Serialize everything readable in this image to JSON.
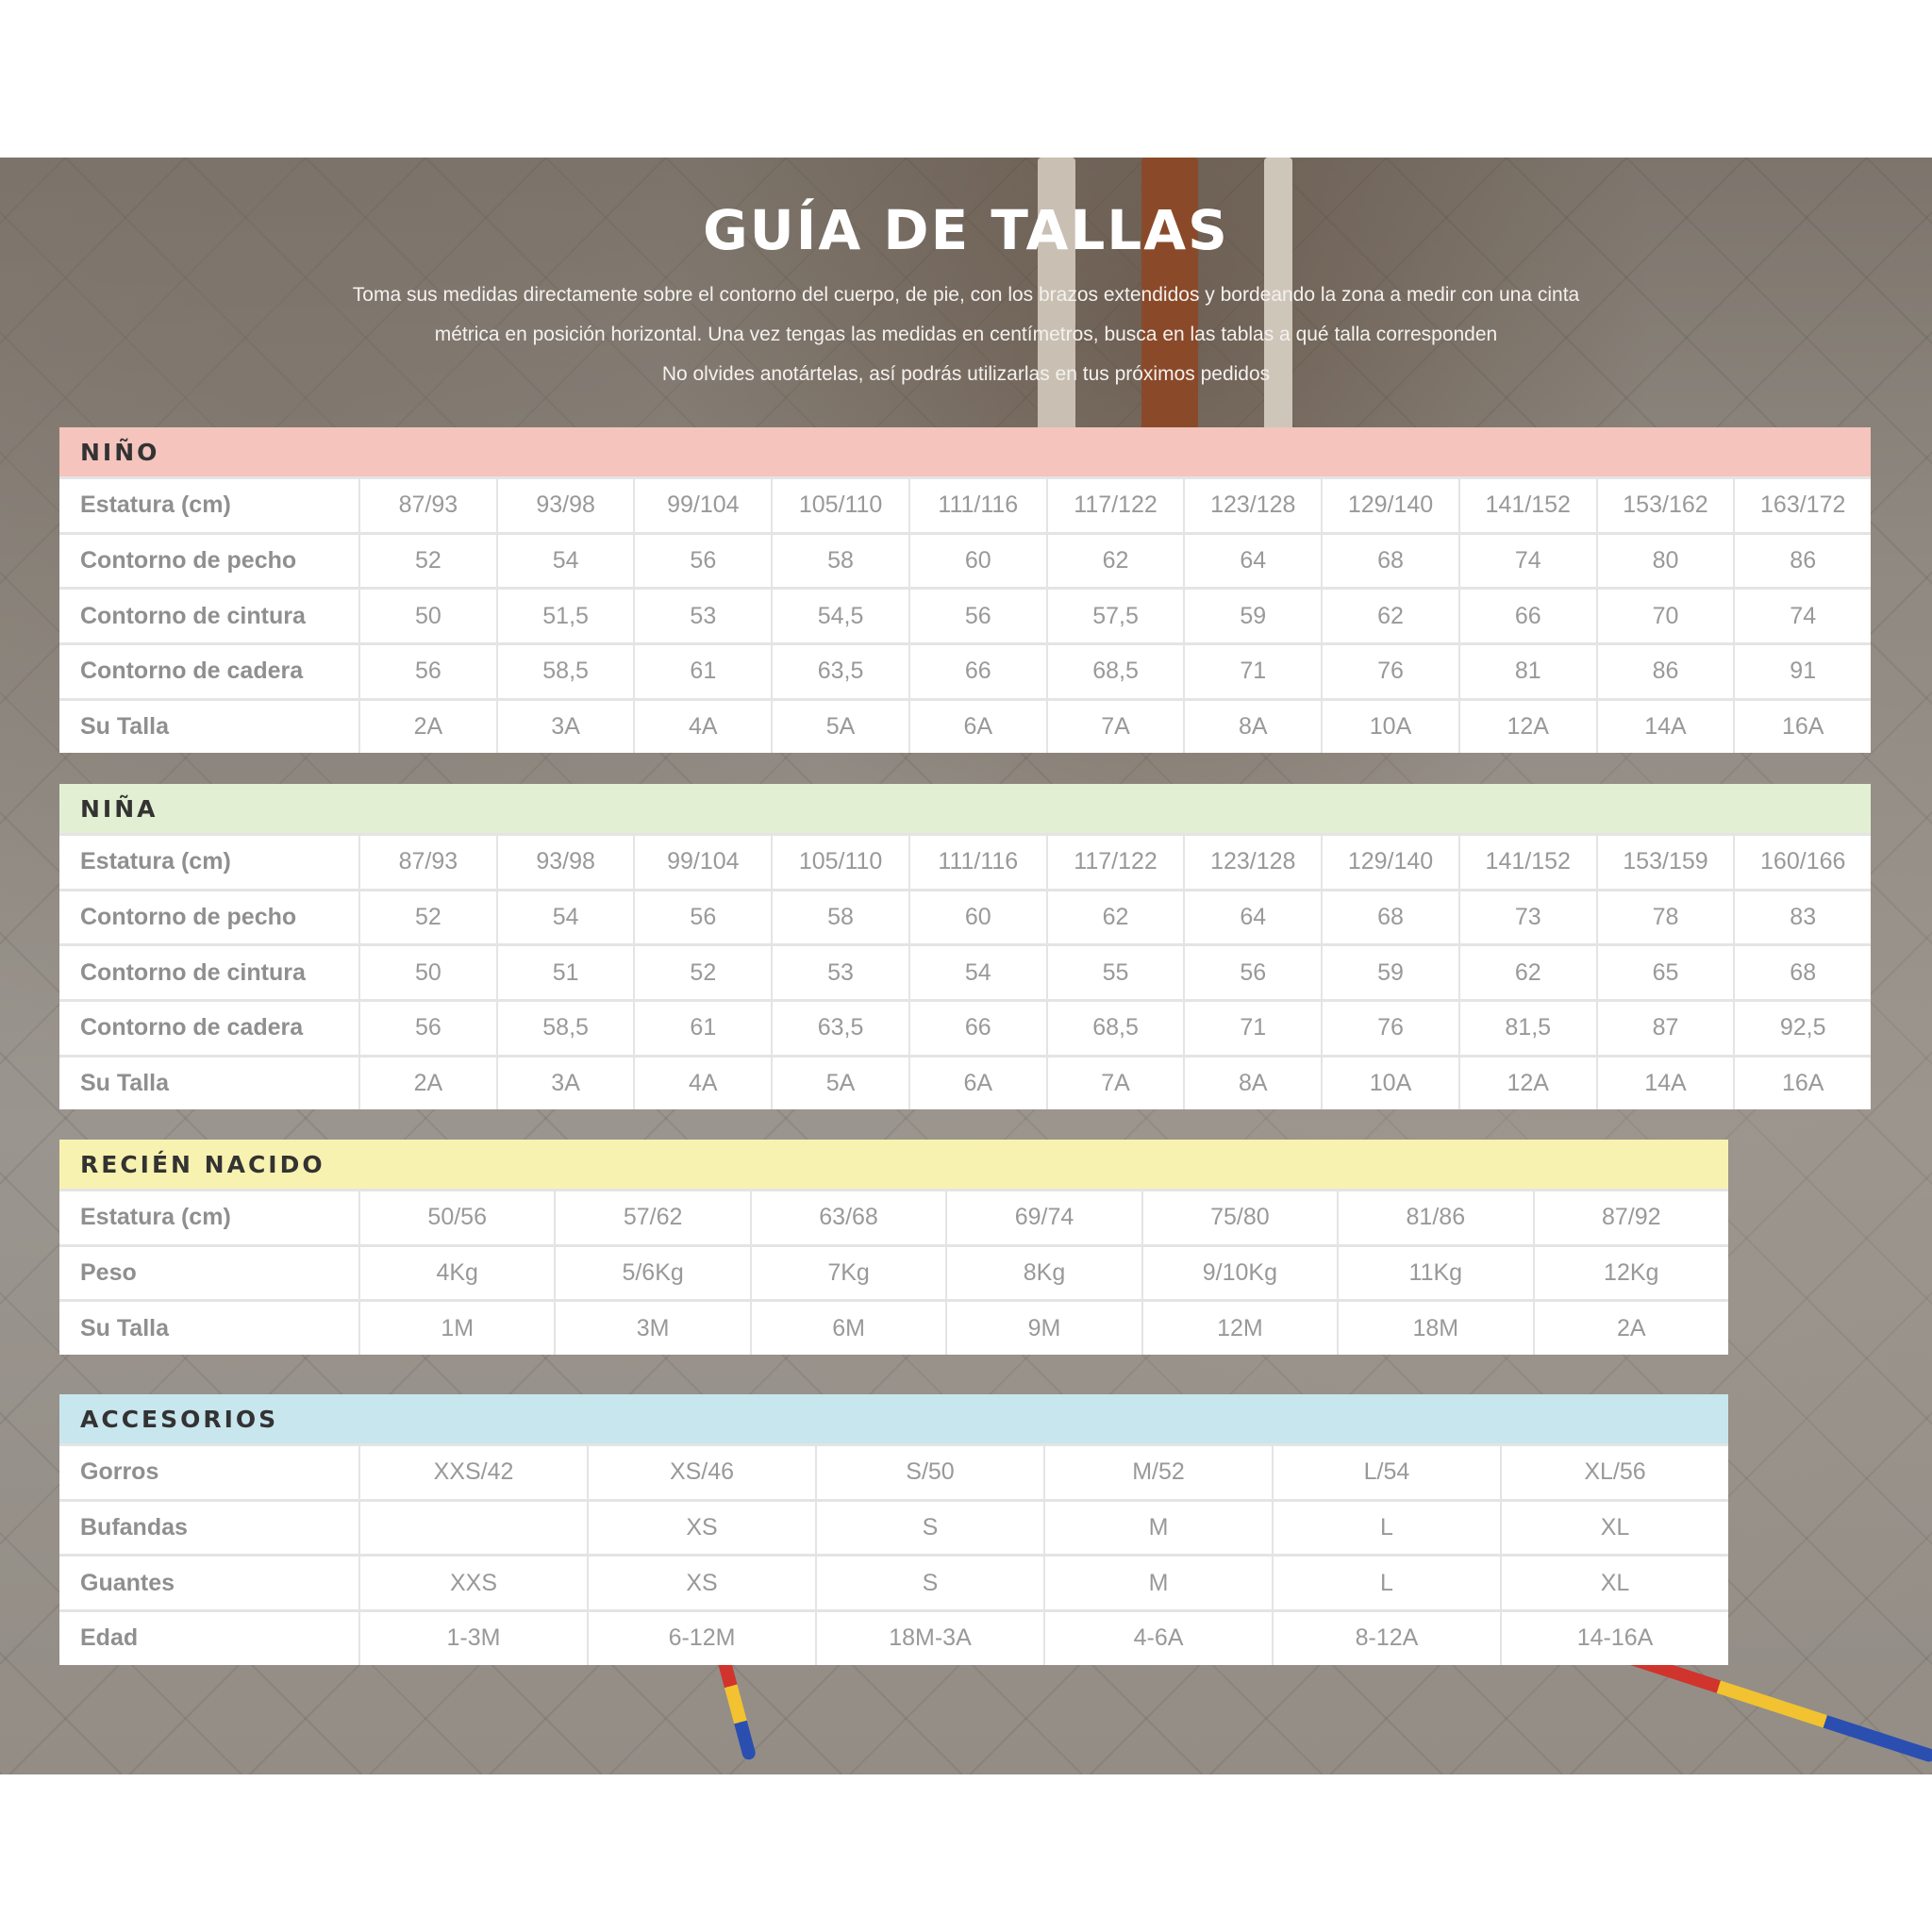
{
  "title": "GUÍA DE TALLAS",
  "intro": [
    "Toma sus medidas directamente sobre el contorno del cuerpo, de pie, con los brazos extendidos y bordeando la zona a medir con una cinta",
    "métrica en posición horizontal. Una vez tengas las medidas en centímetros, busca en las tablas a qué talla corresponden",
    "No olvides anotártelas, así podrás utilizarlas en tus próximos pedidos"
  ],
  "colors": {
    "nino": "#f4c4bd",
    "nina": "#e3efd2",
    "recien": "#f8f2b0",
    "accesorios": "#c8e6ee"
  },
  "tables": [
    {
      "title": "NIÑO",
      "rows": [
        {
          "label": "Estatura (cm)",
          "values": [
            "87/93",
            "93/98",
            "99/104",
            "105/110",
            "111/116",
            "117/122",
            "123/128",
            "129/140",
            "141/152",
            "153/162",
            "163/172"
          ]
        },
        {
          "label": "Contorno de pecho",
          "values": [
            "52",
            "54",
            "56",
            "58",
            "60",
            "62",
            "64",
            "68",
            "74",
            "80",
            "86"
          ]
        },
        {
          "label": "Contorno de cintura",
          "values": [
            "50",
            "51,5",
            "53",
            "54,5",
            "56",
            "57,5",
            "59",
            "62",
            "66",
            "70",
            "74"
          ]
        },
        {
          "label": "Contorno de cadera",
          "values": [
            "56",
            "58,5",
            "61",
            "63,5",
            "66",
            "68,5",
            "71",
            "76",
            "81",
            "86",
            "91"
          ]
        },
        {
          "label": "Su Talla",
          "values": [
            "2A",
            "3A",
            "4A",
            "5A",
            "6A",
            "7A",
            "8A",
            "10A",
            "12A",
            "14A",
            "16A"
          ]
        }
      ]
    },
    {
      "title": "NIÑA",
      "rows": [
        {
          "label": "Estatura (cm)",
          "values": [
            "87/93",
            "93/98",
            "99/104",
            "105/110",
            "111/116",
            "117/122",
            "123/128",
            "129/140",
            "141/152",
            "153/159",
            "160/166"
          ]
        },
        {
          "label": "Contorno de pecho",
          "values": [
            "52",
            "54",
            "56",
            "58",
            "60",
            "62",
            "64",
            "68",
            "73",
            "78",
            "83"
          ]
        },
        {
          "label": "Contorno de cintura",
          "values": [
            "50",
            "51",
            "52",
            "53",
            "54",
            "55",
            "56",
            "59",
            "62",
            "65",
            "68"
          ]
        },
        {
          "label": "Contorno de cadera",
          "values": [
            "56",
            "58,5",
            "61",
            "63,5",
            "66",
            "68,5",
            "71",
            "76",
            "81,5",
            "87",
            "92,5"
          ]
        },
        {
          "label": "Su Talla",
          "values": [
            "2A",
            "3A",
            "4A",
            "5A",
            "6A",
            "7A",
            "8A",
            "10A",
            "12A",
            "14A",
            "16A"
          ]
        }
      ]
    },
    {
      "title": "RECIÉN NACIDO",
      "rows": [
        {
          "label": "Estatura (cm)",
          "values": [
            "50/56",
            "57/62",
            "63/68",
            "69/74",
            "75/80",
            "81/86",
            "87/92"
          ]
        },
        {
          "label": "Peso",
          "values": [
            "4Kg",
            "5/6Kg",
            "7Kg",
            "8Kg",
            "9/10Kg",
            "11Kg",
            "12Kg"
          ]
        },
        {
          "label": "Su Talla",
          "values": [
            "1M",
            "3M",
            "6M",
            "9M",
            "12M",
            "18M",
            "2A"
          ]
        }
      ]
    },
    {
      "title": "ACCESORIOS",
      "rows": [
        {
          "label": "Gorros",
          "values": [
            "XXS/42",
            "XS/46",
            "S/50",
            "M/52",
            "L/54",
            "XL/56"
          ]
        },
        {
          "label": "Bufandas",
          "values": [
            "",
            "XS",
            "S",
            "M",
            "L",
            "XL"
          ]
        },
        {
          "label": "Guantes",
          "values": [
            "XXS",
            "XS",
            "S",
            "M",
            "L",
            "XL"
          ]
        },
        {
          "label": "Edad",
          "values": [
            "1-3M",
            "6-12M",
            "18M-3A",
            "4-6A",
            "8-12A",
            "14-16A"
          ]
        }
      ]
    }
  ]
}
